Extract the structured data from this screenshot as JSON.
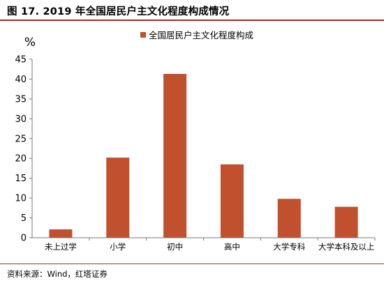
{
  "figure": {
    "title": "图 17. 2019 年全国居民户主文化程度构成情况",
    "source": "资料来源：Wind，红塔证券"
  },
  "chart_data": {
    "type": "bar",
    "title": "",
    "ylabel": "%",
    "xlabel": "",
    "ylim": [
      0,
      45
    ],
    "yticks": [
      0,
      5,
      10,
      15,
      20,
      25,
      30,
      35,
      40,
      45
    ],
    "grid": false,
    "legend_position": "top-center",
    "categories": [
      "未上过学",
      "小学",
      "初中",
      "高中",
      "大学专科",
      "大学本科及以上"
    ],
    "series": [
      {
        "name": "全国居民户主文化程度构成",
        "color": "#c0502e",
        "values": [
          2.1,
          20.2,
          41.3,
          18.5,
          9.8,
          7.8
        ]
      }
    ]
  }
}
